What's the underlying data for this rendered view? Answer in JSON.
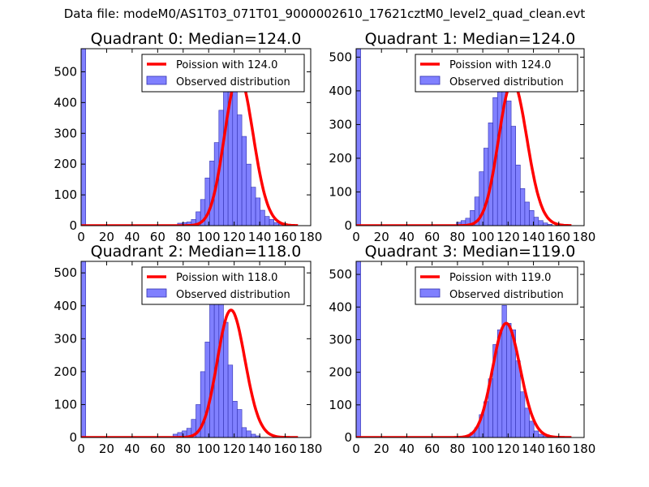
{
  "figure": {
    "suptitle": "Data file: modeM0/AS1T03_071T01_9000002610_17621cztM0_level2_quad_clean.evt"
  },
  "colors": {
    "bar_fill": "#8080ff",
    "bar_edge": "#3030b0",
    "curve": "#ff0000",
    "axes": "#000000"
  },
  "chart_data": [
    {
      "type": "bar",
      "title": "Quadrant 0: Median=124.0",
      "median": 124.0,
      "xlim": [
        0,
        180
      ],
      "ylim": [
        0,
        575
      ],
      "xticks": [
        "0",
        "20",
        "40",
        "60",
        "80",
        "100",
        "120",
        "140",
        "160",
        "180"
      ],
      "yticks": [
        "0",
        "100",
        "200",
        "300",
        "400",
        "500"
      ],
      "legend_position": "top-right",
      "legend": [
        "Poission with 124.0",
        "Observed distribution"
      ],
      "hist_x0": 0,
      "hist_width": 3.6,
      "hist_counts": [
        575,
        0,
        0,
        0,
        0,
        0,
        0,
        0,
        0,
        0,
        0,
        0,
        0,
        0,
        0,
        0,
        0,
        0,
        0,
        0,
        0,
        8,
        10,
        12,
        20,
        45,
        85,
        155,
        210,
        270,
        375,
        465,
        510,
        455,
        360,
        290,
        200,
        125,
        90,
        50,
        30,
        20,
        10,
        5,
        3,
        0,
        0,
        0,
        0,
        0
      ]
    },
    {
      "type": "bar",
      "title": "Quadrant 1: Median=124.0",
      "median": 124.0,
      "xlim": [
        0,
        180
      ],
      "ylim": [
        0,
        525
      ],
      "xticks": [
        "0",
        "20",
        "40",
        "60",
        "80",
        "100",
        "120",
        "140",
        "160",
        "180"
      ],
      "yticks": [
        "0",
        "100",
        "200",
        "300",
        "400",
        "500"
      ],
      "legend_position": "top-right",
      "legend": [
        "Poission with 124.0",
        "Observed distribution"
      ],
      "hist_x0": 0,
      "hist_width": 3.6,
      "hist_counts": [
        525,
        0,
        0,
        0,
        0,
        0,
        0,
        0,
        0,
        0,
        0,
        0,
        0,
        0,
        0,
        0,
        0,
        0,
        0,
        0,
        0,
        0,
        10,
        15,
        22,
        45,
        85,
        160,
        230,
        305,
        380,
        480,
        460,
        370,
        295,
        180,
        110,
        70,
        45,
        25,
        15,
        8,
        4,
        0,
        0,
        0,
        0,
        0,
        0,
        0
      ]
    },
    {
      "type": "bar",
      "title": "Quadrant 2: Median=118.0",
      "median": 118.0,
      "xlim": [
        0,
        180
      ],
      "ylim": [
        0,
        535
      ],
      "xticks": [
        "0",
        "20",
        "40",
        "60",
        "80",
        "100",
        "120",
        "140",
        "160",
        "180"
      ],
      "yticks": [
        "0",
        "100",
        "200",
        "300",
        "400",
        "500"
      ],
      "legend_position": "top-right",
      "legend": [
        "Poission with 118.0",
        "Observed distribution"
      ],
      "hist_x0": 0,
      "hist_width": 3.6,
      "hist_counts": [
        535,
        0,
        0,
        0,
        0,
        0,
        0,
        0,
        0,
        0,
        0,
        0,
        0,
        0,
        0,
        0,
        0,
        0,
        0,
        0,
        10,
        15,
        20,
        28,
        55,
        100,
        200,
        290,
        460,
        500,
        420,
        350,
        220,
        110,
        85,
        30,
        20,
        10,
        5,
        0,
        0,
        0,
        0,
        0,
        0,
        0,
        0,
        0,
        0,
        0
      ]
    },
    {
      "type": "bar",
      "title": "Quadrant 3: Median=119.0",
      "median": 119.0,
      "xlim": [
        0,
        180
      ],
      "ylim": [
        0,
        540
      ],
      "xticks": [
        "0",
        "20",
        "40",
        "60",
        "80",
        "100",
        "120",
        "140",
        "160",
        "180"
      ],
      "yticks": [
        "0",
        "100",
        "200",
        "300",
        "400",
        "500"
      ],
      "legend_position": "top-right",
      "legend": [
        "Poission with 119.0",
        "Observed distribution"
      ],
      "hist_x0": 0,
      "hist_width": 3.6,
      "hist_counts": [
        540,
        0,
        0,
        0,
        0,
        0,
        0,
        0,
        0,
        0,
        0,
        0,
        0,
        0,
        0,
        0,
        0,
        0,
        0,
        0,
        0,
        0,
        0,
        0,
        5,
        15,
        30,
        70,
        110,
        180,
        285,
        330,
        405,
        350,
        330,
        235,
        140,
        90,
        50,
        20,
        10,
        5,
        0,
        0,
        0,
        0,
        0,
        0,
        0,
        0
      ]
    }
  ]
}
